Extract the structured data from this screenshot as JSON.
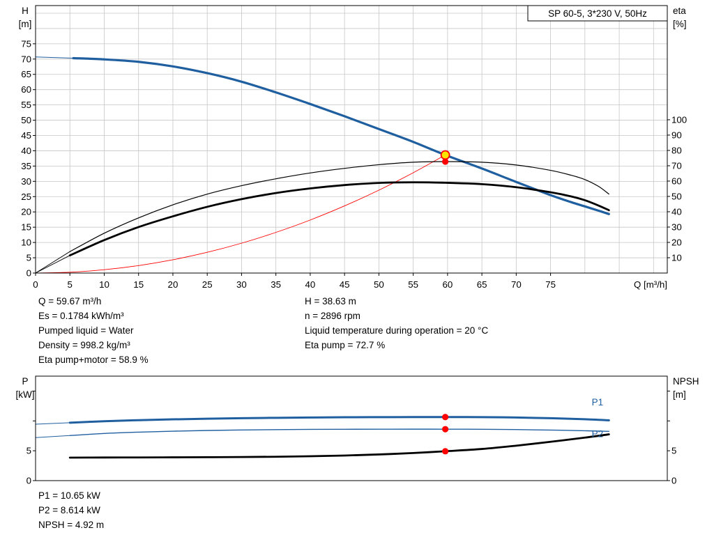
{
  "colors": {
    "grid": "#c6c6c6",
    "axis": "#000000",
    "curve_blue": "#1f5fa0",
    "curve_black": "#000000",
    "curve_red": "#ff0000",
    "dot": "#ff0000",
    "duty_fill": "#ffe400",
    "duty_stroke": "#ff0000"
  },
  "details": {
    "left": [
      "Q = 59.67 m³/h",
      "Es = 0.1784 kWh/m³",
      "Pumped liquid = Water",
      "Density = 998.2 kg/m³",
      "Eta pump+motor = 58.9 %"
    ],
    "right": [
      "H = 38.63 m",
      "n = 2896 rpm",
      "Liquid temperature during operation = 20 °C",
      "Eta pump = 72.7 %"
    ]
  },
  "results": [
    "P1 = 10.65 kW",
    "P2 = 8.614 kW",
    "NPSH = 4.92 m"
  ],
  "chart_data": [
    {
      "id": "qh-eta-chart",
      "type": "line",
      "title": "SP 60-5, 3*230 V, 50Hz",
      "x_axis": {
        "label": "Q [m³/h]",
        "min": 0,
        "max": 92,
        "grid_step": 5,
        "labeled_ticks": [
          0,
          5,
          10,
          15,
          20,
          25,
          30,
          35,
          40,
          45,
          50,
          55,
          60,
          65,
          70,
          75
        ]
      },
      "left_axis": {
        "name": "H",
        "unit": "[m]",
        "min": 0,
        "max": 87.5,
        "grid_step": 5,
        "labeled_ticks": [
          0,
          5,
          10,
          15,
          20,
          25,
          30,
          35,
          40,
          45,
          50,
          55,
          60,
          65,
          70,
          75
        ]
      },
      "right_axis": {
        "name": "eta",
        "unit": "[%]",
        "min": 0,
        "max": 174.5,
        "labeled_ticks": [
          10,
          20,
          30,
          40,
          50,
          60,
          70,
          80,
          90,
          100
        ]
      },
      "series": [
        {
          "name": "head-curve-lead",
          "axis": "left",
          "color": "#1f5fa0",
          "width": 1,
          "points": [
            [
              0,
              70.7
            ],
            [
              5.5,
              70.3
            ]
          ]
        },
        {
          "name": "head-curve",
          "axis": "left",
          "color": "#1f5fa0",
          "width": 3.2,
          "points": [
            [
              5.5,
              70.3
            ],
            [
              10,
              69.9
            ],
            [
              15,
              69.1
            ],
            [
              20,
              67.6
            ],
            [
              25,
              65.4
            ],
            [
              30,
              62.6
            ],
            [
              35,
              59.1
            ],
            [
              40,
              55.3
            ],
            [
              45,
              51.3
            ],
            [
              50,
              47.1
            ],
            [
              55,
              42.9
            ],
            [
              59.67,
              38.63
            ],
            [
              65,
              34.2
            ],
            [
              70,
              29.8
            ],
            [
              75,
              25.5
            ],
            [
              78,
              23.2
            ],
            [
              80,
              21.8
            ],
            [
              82,
              20.4
            ],
            [
              83.5,
              19.3
            ]
          ]
        },
        {
          "name": "system-curve",
          "axis": "left",
          "color": "#ff0000",
          "width": 0.9,
          "points": [
            [
              0,
              0
            ],
            [
              5,
              0.27
            ],
            [
              10,
              1.09
            ],
            [
              15,
              2.44
            ],
            [
              20,
              4.34
            ],
            [
              25,
              6.78
            ],
            [
              30,
              9.77
            ],
            [
              35,
              13.3
            ],
            [
              40,
              17.35
            ],
            [
              45,
              21.97
            ],
            [
              50,
              27.12
            ],
            [
              55,
              32.82
            ],
            [
              59.67,
              38.63
            ]
          ]
        },
        {
          "name": "eta-pump-curve-lead",
          "axis": "right",
          "color": "#000000",
          "width": 0.9,
          "points": [
            [
              0,
              0
            ],
            [
              5,
              14
            ]
          ]
        },
        {
          "name": "eta-pump-curve",
          "axis": "right",
          "color": "#000000",
          "width": 1.2,
          "points": [
            [
              5,
              14
            ],
            [
              10,
              26
            ],
            [
              15,
              36
            ],
            [
              20,
              44.5
            ],
            [
              25,
              51.5
            ],
            [
              30,
              57
            ],
            [
              35,
              61.5
            ],
            [
              40,
              65.3
            ],
            [
              45,
              68.3
            ],
            [
              50,
              70.7
            ],
            [
              55,
              72.3
            ],
            [
              59.67,
              72.7
            ],
            [
              65,
              72.3
            ],
            [
              70,
              70.5
            ],
            [
              75,
              67
            ],
            [
              78,
              63.8
            ],
            [
              80,
              61
            ],
            [
              82,
              56.5
            ],
            [
              83.5,
              51.5
            ]
          ]
        },
        {
          "name": "eta-pump-motor-curve-lead",
          "axis": "right",
          "color": "#000000",
          "width": 0.9,
          "points": [
            [
              0,
              0
            ],
            [
              5,
              11.5
            ]
          ]
        },
        {
          "name": "eta-pump-motor-curve",
          "axis": "right",
          "color": "#000000",
          "width": 2.8,
          "points": [
            [
              5,
              11.5
            ],
            [
              10,
              21.5
            ],
            [
              15,
              30
            ],
            [
              20,
              37
            ],
            [
              25,
              43.2
            ],
            [
              30,
              48.2
            ],
            [
              35,
              52.2
            ],
            [
              40,
              55.2
            ],
            [
              45,
              57.4
            ],
            [
              50,
              58.8
            ],
            [
              55,
              59.2
            ],
            [
              59.67,
              58.9
            ],
            [
              65,
              58
            ],
            [
              70,
              56
            ],
            [
              75,
              52.7
            ],
            [
              78,
              50
            ],
            [
              80,
              47.5
            ],
            [
              82,
              44
            ],
            [
              83.5,
              41
            ]
          ]
        }
      ],
      "markers": [
        {
          "name": "duty-point",
          "x": 59.67,
          "value": 38.63,
          "axis": "left",
          "style": "duty"
        },
        {
          "name": "eta-pump-point",
          "x": 59.67,
          "value": 72.7,
          "axis": "right",
          "style": "dot"
        }
      ],
      "annotations": []
    },
    {
      "id": "power-npsh-chart",
      "type": "line",
      "title": "",
      "x_axis": {
        "label": "",
        "min": 0,
        "max": 92,
        "labeled_ticks": []
      },
      "left_axis": {
        "name": "P",
        "unit": "[kW]",
        "min": 0,
        "max": 17.5,
        "labeled_ticks": [
          0,
          5
        ],
        "unlabeled_ticks": [
          10,
          15
        ]
      },
      "right_axis": {
        "name": "NPSH",
        "unit": "[m]",
        "min": 0,
        "max": 17.5,
        "labeled_ticks": [
          0,
          5
        ],
        "unlabeled_ticks": [
          10,
          15
        ]
      },
      "series": [
        {
          "name": "p1-curve-lead",
          "axis": "left",
          "color": "#1f5fa0",
          "width": 1,
          "points": [
            [
              0,
              9.45
            ],
            [
              5,
              9.7
            ]
          ]
        },
        {
          "name": "p1-curve",
          "axis": "left",
          "color": "#1f5fa0",
          "width": 3,
          "points": [
            [
              5,
              9.7
            ],
            [
              10,
              9.95
            ],
            [
              15,
              10.12
            ],
            [
              20,
              10.26
            ],
            [
              25,
              10.37
            ],
            [
              30,
              10.46
            ],
            [
              35,
              10.52
            ],
            [
              40,
              10.57
            ],
            [
              45,
              10.61
            ],
            [
              50,
              10.63
            ],
            [
              55,
              10.65
            ],
            [
              59.67,
              10.65
            ],
            [
              65,
              10.63
            ],
            [
              70,
              10.57
            ],
            [
              75,
              10.45
            ],
            [
              80,
              10.28
            ],
            [
              83.5,
              10.1
            ]
          ]
        },
        {
          "name": "p2-curve-lead",
          "axis": "left",
          "color": "#1f5fa0",
          "width": 1,
          "points": [
            [
              0,
              7.2
            ],
            [
              5,
              7.55
            ]
          ]
        },
        {
          "name": "p2-curve",
          "axis": "left",
          "color": "#1f5fa0",
          "width": 1.4,
          "points": [
            [
              5,
              7.55
            ],
            [
              10,
              7.9
            ],
            [
              15,
              8.12
            ],
            [
              20,
              8.28
            ],
            [
              25,
              8.4
            ],
            [
              30,
              8.48
            ],
            [
              35,
              8.54
            ],
            [
              40,
              8.58
            ],
            [
              45,
              8.6
            ],
            [
              50,
              8.61
            ],
            [
              55,
              8.62
            ],
            [
              59.67,
              8.614
            ],
            [
              65,
              8.6
            ],
            [
              70,
              8.55
            ],
            [
              75,
              8.47
            ],
            [
              80,
              8.35
            ],
            [
              83.5,
              8.25
            ]
          ]
        },
        {
          "name": "npsh-curve",
          "axis": "right",
          "color": "#000000",
          "width": 2.8,
          "points": [
            [
              5,
              3.85
            ],
            [
              10,
              3.87
            ],
            [
              15,
              3.88
            ],
            [
              20,
              3.9
            ],
            [
              25,
              3.92
            ],
            [
              30,
              3.95
            ],
            [
              35,
              4.0
            ],
            [
              40,
              4.08
            ],
            [
              45,
              4.2
            ],
            [
              50,
              4.38
            ],
            [
              55,
              4.62
            ],
            [
              59.67,
              4.92
            ],
            [
              65,
              5.3
            ],
            [
              70,
              5.85
            ],
            [
              75,
              6.5
            ],
            [
              80,
              7.2
            ],
            [
              83.5,
              7.75
            ]
          ]
        }
      ],
      "markers": [
        {
          "name": "p1-point",
          "x": 59.67,
          "value": 10.65,
          "axis": "left",
          "style": "dot"
        },
        {
          "name": "p2-point",
          "x": 59.67,
          "value": 8.614,
          "axis": "left",
          "style": "dot"
        },
        {
          "name": "npsh-point",
          "x": 59.67,
          "value": 4.92,
          "axis": "right",
          "style": "dot"
        }
      ],
      "annotations": [
        {
          "name": "p1-curve-label",
          "text": "P1",
          "x": 81,
          "value": 12.6,
          "axis": "left",
          "color": "#1f5fa0"
        },
        {
          "name": "p2-curve-label",
          "text": "P2",
          "x": 81,
          "value": 7.3,
          "axis": "left",
          "color": "#1f5fa0"
        }
      ]
    }
  ]
}
